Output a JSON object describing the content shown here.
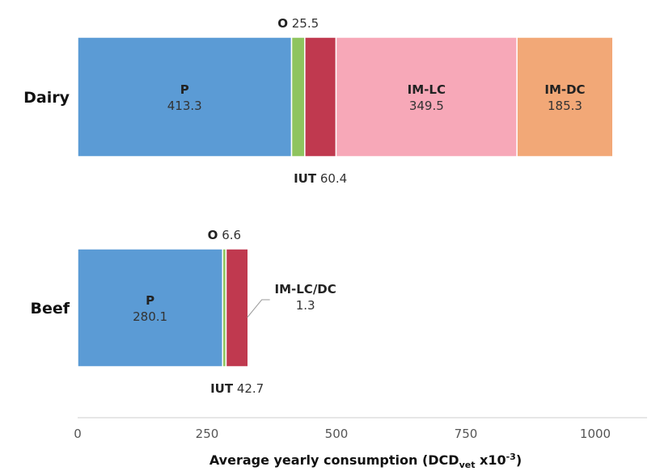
{
  "chart_data": {
    "type": "bar",
    "orientation": "horizontal",
    "stacked": true,
    "categories": [
      "Dairy",
      "Beef"
    ],
    "series": [
      {
        "name": "P",
        "values": [
          413.3,
          280.1
        ],
        "color": "#5b9bd5"
      },
      {
        "name": "O",
        "values": [
          25.5,
          6.6
        ],
        "color": "#8fc45f"
      },
      {
        "name": "IUT",
        "values": [
          60.4,
          42.7
        ],
        "color": "#c0394f"
      },
      {
        "name": "IM-LC",
        "values": [
          349.5,
          null
        ],
        "color": "#f7a8b8"
      },
      {
        "name": "IM-DC",
        "values": [
          185.3,
          null
        ],
        "color": "#f2a877"
      },
      {
        "name": "IM-LC/DC",
        "values": [
          null,
          1.3
        ],
        "color": "#f7a8b8"
      }
    ],
    "xlim": [
      0,
      1000
    ],
    "xticks": [
      "0",
      "250",
      "500",
      "750",
      "1000"
    ],
    "xlabel_main": "Average yearly consumption (DCD",
    "xlabel_sub": "vet",
    "xlabel_tail": " x10",
    "xlabel_sup": "-3",
    "xlabel_end": ")",
    "grid": false
  }
}
